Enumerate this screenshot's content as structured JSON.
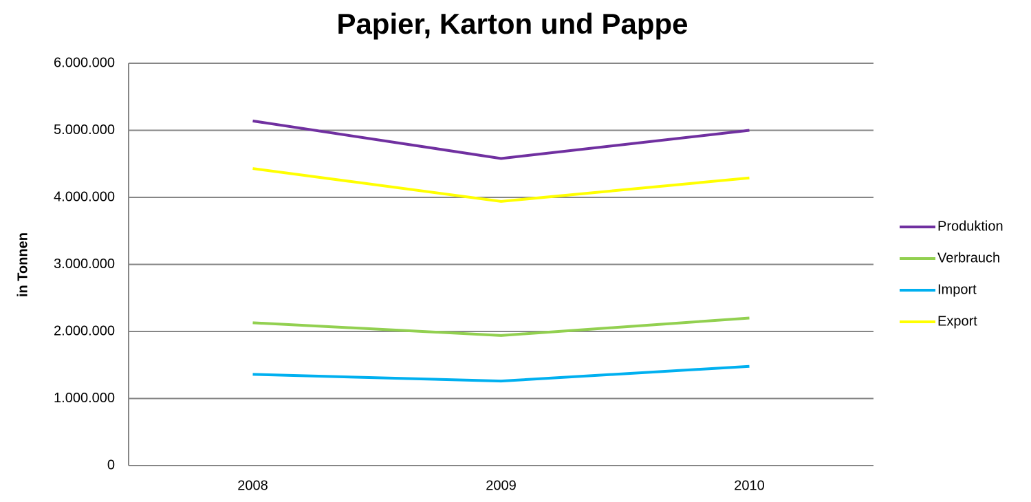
{
  "chart_data": {
    "type": "line",
    "title": "Papier, Karton und Pappe",
    "y_label": "in Tonnen",
    "categories": [
      "2008",
      "2009",
      "2010"
    ],
    "series": [
      {
        "name": "Produktion",
        "color": "#7030a0",
        "values": [
          5140000,
          4580000,
          5000000
        ]
      },
      {
        "name": "Verbrauch",
        "color": "#92d050",
        "values": [
          2130000,
          1940000,
          2200000
        ]
      },
      {
        "name": "Import",
        "color": "#00b0f0",
        "values": [
          1360000,
          1260000,
          1480000
        ]
      },
      {
        "name": "Export",
        "color": "#ffff00",
        "values": [
          4430000,
          3940000,
          4290000
        ]
      }
    ],
    "ylim": [
      0,
      6000000
    ],
    "yticks": [
      0,
      {
        "value": 1000000,
        "label": "1.000.000"
      },
      {
        "value": 2000000,
        "label": "2.000.000"
      },
      {
        "value": 3000000,
        "label": "3.000.000"
      },
      {
        "value": 4000000,
        "label": "4.000.000"
      },
      {
        "value": 5000000,
        "label": "5.000.000"
      },
      {
        "value": 6000000,
        "label": "6.000.000"
      }
    ],
    "grid": true,
    "legend": "right"
  }
}
